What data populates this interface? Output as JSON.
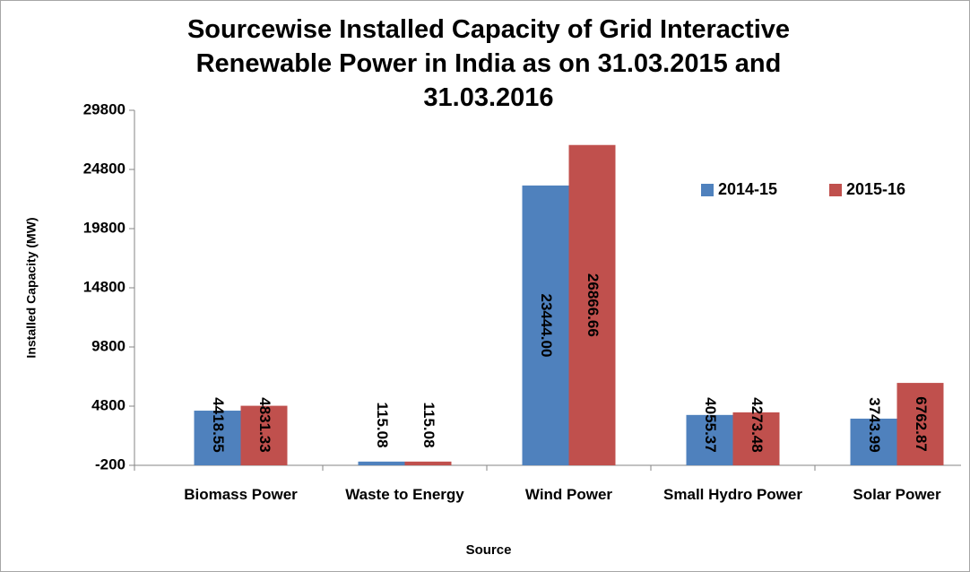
{
  "chart_data": {
    "type": "bar",
    "title": "Sourcewise Installed Capacity of Grid Interactive Renewable Power in India as on 31.03.2015 and 31.03.2016",
    "x_label": "Source",
    "y_label": "Installed Capacity (MW)",
    "categories": [
      "Biomass Power",
      "Waste to Energy",
      "Wind Power",
      "Small Hydro Power",
      "Solar Power"
    ],
    "series": [
      {
        "name": "2014-15",
        "color": "#4f81bd",
        "values": [
          4418.55,
          115.08,
          23444,
          4055.37,
          3743.99
        ],
        "value_labels": [
          "4418.55",
          "115.08",
          "23444.00",
          "4055.37",
          "3743.99"
        ]
      },
      {
        "name": "2015-16",
        "color": "#c0504d",
        "values": [
          4831.33,
          115.08,
          26866.66,
          4273.48,
          6762.87
        ],
        "value_labels": [
          "4831.33",
          "115.08",
          "26866.66",
          "4273.48",
          "6762.87"
        ]
      }
    ],
    "ylim": [
      -200,
      29800
    ],
    "yticks": [
      -200,
      4800,
      9800,
      14800,
      19800,
      24800,
      29800
    ],
    "legend": "upper right",
    "grid": false
  }
}
